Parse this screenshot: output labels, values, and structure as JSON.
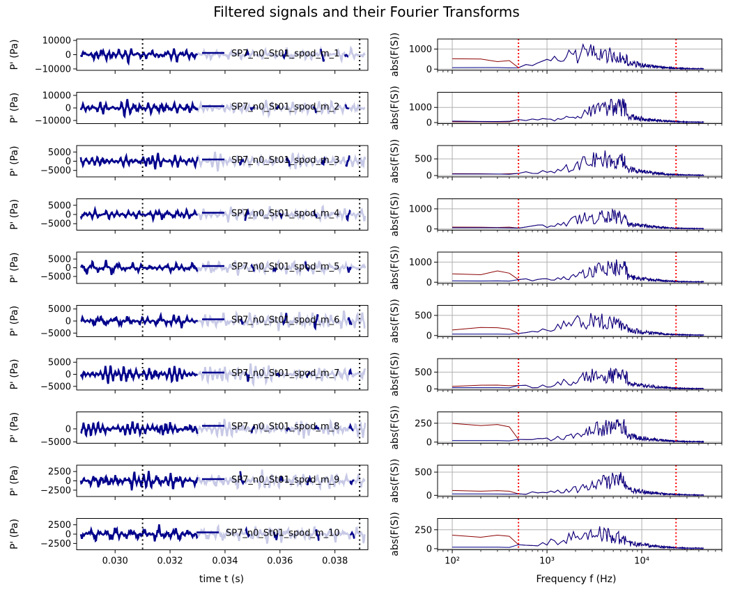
{
  "chart_data": {
    "type": "line",
    "title": "Filtered signals and their Fourier Transforms",
    "left_column": {
      "xlabel": "time t (s)",
      "ylabel": "P' (Pa)",
      "xlim": [
        0.0286,
        0.0392
      ],
      "xticks": [
        0.03,
        0.032,
        0.034,
        0.036,
        0.038
      ],
      "xtick_labels": [
        "0.030",
        "0.032",
        "0.034",
        "0.036",
        "0.038"
      ],
      "window_markers": [
        0.031,
        0.0389
      ],
      "signal_color": "#00008b",
      "residual_color": "#c7c9e6",
      "marker_color": "#000000"
    },
    "right_column": {
      "xlabel": "Frequency f (Hz)",
      "ylabel": "abs(F(S))",
      "xscale": "log",
      "xlim": [
        70,
        70000
      ],
      "xticks": [
        100,
        1000,
        10000
      ],
      "xtick_labels": [
        "10²",
        "10³",
        "10⁴"
      ],
      "window_markers": [
        500,
        23000
      ],
      "full_color": "#8b0000",
      "filtered_color": "#00008b",
      "marker_color": "#ff0000",
      "grid": true
    },
    "series": [
      {
        "name": "SP7_n0_St01_spod_m_1",
        "amp": 5800,
        "ylim": [
          -11000,
          11000
        ],
        "yticks": [
          -10000,
          0,
          10000
        ],
        "ytick_labels": [
          "−10000",
          "0",
          "10000"
        ],
        "fft_ylim": [
          -60,
          1500
        ],
        "fft_yticks": [
          0,
          1000
        ],
        "fft_ytick_labels": [
          "0",
          "1000"
        ],
        "fft_peak": 1300,
        "fft_low": 560,
        "peak_f": 3000
      },
      {
        "name": "SP7_n0_St01_spod_m_2",
        "amp": 7000,
        "ylim": [
          -12500,
          12500
        ],
        "yticks": [
          -10000,
          0,
          10000
        ],
        "ytick_labels": [
          "−10000",
          "0",
          "10000"
        ],
        "fft_ylim": [
          -70,
          2000
        ],
        "fft_yticks": [
          0,
          1000
        ],
        "fft_ytick_labels": [
          "0",
          "1000"
        ],
        "fft_peak": 1650,
        "fft_low": 60,
        "peak_f": 5500
      },
      {
        "name": "SP7_n0_St01_spod_m_3",
        "amp": 5500,
        "ylim": [
          -8500,
          8500
        ],
        "yticks": [
          -5000,
          0,
          5000
        ],
        "ytick_labels": [
          "−5000",
          "0",
          "5000"
        ],
        "fft_ylim": [
          -40,
          900
        ],
        "fft_yticks": [
          0,
          500
        ],
        "fft_ytick_labels": [
          "0",
          "500"
        ],
        "fft_peak": 770,
        "fft_low": 70,
        "peak_f": 4200
      },
      {
        "name": "SP7_n0_St01_spod_m_4",
        "amp": 4500,
        "ylim": [
          -8500,
          8500
        ],
        "yticks": [
          -5000,
          0,
          5000
        ],
        "ytick_labels": [
          "−5000",
          "0",
          "5000"
        ],
        "fft_ylim": [
          -60,
          1500
        ],
        "fft_yticks": [
          0,
          1000
        ],
        "fft_ytick_labels": [
          "0",
          "1000"
        ],
        "fft_peak": 1050,
        "fft_low": 120,
        "peak_f": 4200
      },
      {
        "name": "SP7_n0_St01_spod_m_5",
        "amp": 4500,
        "ylim": [
          -9000,
          9000
        ],
        "yticks": [
          -5000,
          0,
          5000
        ],
        "ytick_labels": [
          "−5000",
          "0",
          "5000"
        ],
        "fft_ylim": [
          -60,
          1500
        ],
        "fft_yticks": [
          0,
          1000
        ],
        "fft_ytick_labels": [
          "0",
          "1000"
        ],
        "fft_peak": 1150,
        "fft_low": 570,
        "peak_f": 5500
      },
      {
        "name": "SP7_n0_St01_spod_m_6",
        "amp": 4300,
        "ylim": [
          -6500,
          6500
        ],
        "yticks": [
          -5000,
          0,
          5000
        ],
        "ytick_labels": [
          "−5000",
          "0",
          "5000"
        ],
        "fft_ylim": [
          -30,
          750
        ],
        "fft_yticks": [
          0,
          500
        ],
        "fft_ytick_labels": [
          "0",
          "500"
        ],
        "fft_peak": 600,
        "fft_low": 200,
        "peak_f": 3000
      },
      {
        "name": "SP7_n0_St01_spod_m_7",
        "amp": 4500,
        "ylim": [
          -6500,
          6500
        ],
        "yticks": [
          -5000,
          0,
          5000
        ],
        "ytick_labels": [
          "−5000",
          "0",
          "5000"
        ],
        "fft_ylim": [
          -30,
          900
        ],
        "fft_yticks": [
          0,
          500
        ],
        "fft_ytick_labels": [
          "0",
          "500"
        ],
        "fft_peak": 680,
        "fft_low": 120,
        "peak_f": 4200
      },
      {
        "name": "SP7_n0_St01_spod_m_8",
        "amp": 3800,
        "ylim": [
          -5500,
          6500
        ],
        "yticks": [
          -5000,
          0
        ],
        "ytick_labels": [
          "−5000",
          "0"
        ],
        "fft_ylim": [
          -15,
          400
        ],
        "fft_yticks": [
          0,
          250
        ],
        "fft_ytick_labels": [
          "0",
          "250"
        ],
        "fft_peak": 340,
        "fft_low": 250,
        "peak_f": 5500
      },
      {
        "name": "SP7_n0_St01_spod_m_9",
        "amp": 3000,
        "ylim": [
          -4200,
          4200
        ],
        "yticks": [
          -2500,
          0,
          2500
        ],
        "ytick_labels": [
          "−2500",
          "0",
          "2500"
        ],
        "fft_ylim": [
          -25,
          650
        ],
        "fft_yticks": [
          0,
          500
        ],
        "fft_ytick_labels": [
          "0",
          "500"
        ],
        "fft_peak": 520,
        "fft_low": 110,
        "peak_f": 6000
      },
      {
        "name": "SP7_n0_St01_spod_m_10",
        "amp": 2600,
        "ylim": [
          -4200,
          4200
        ],
        "yticks": [
          -2500,
          0,
          2500
        ],
        "ytick_labels": [
          "−2500",
          "0",
          "2500"
        ],
        "fft_ylim": [
          -15,
          400
        ],
        "fft_yticks": [
          0,
          250
        ],
        "fft_ytick_labels": [
          "0",
          "250"
        ],
        "fft_peak": 330,
        "fft_low": 200,
        "peak_f": 3000
      }
    ]
  }
}
